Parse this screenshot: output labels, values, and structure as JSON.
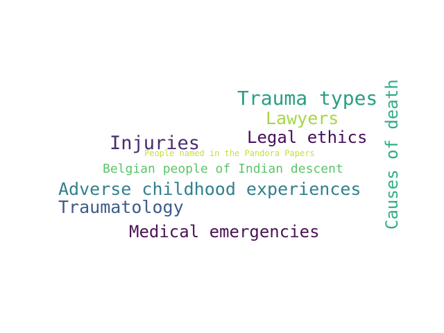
{
  "words": {
    "trauma_types": {
      "text": "Trauma types",
      "color": "#2a9e84"
    },
    "lawyers": {
      "text": "Lawyers",
      "color": "#a7d548"
    },
    "legal_ethics": {
      "text": "Legal ethics",
      "color": "#46105c"
    },
    "injuries": {
      "text": "Injuries",
      "color": "#472d6e"
    },
    "pandora": {
      "text": "People named in the Pandora Papers",
      "color": "#c6df3a"
    },
    "belgian": {
      "text": "Belgian people of Indian descent",
      "color": "#5cc46a"
    },
    "adverse": {
      "text": "Adverse childhood experiences",
      "color": "#31808d"
    },
    "traumatology": {
      "text": "Traumatology",
      "color": "#3d5b89"
    },
    "medical": {
      "text": "Medical emergencies",
      "color": "#4a1453"
    },
    "causes": {
      "text": "Causes of death",
      "color": "#2fae88"
    }
  }
}
